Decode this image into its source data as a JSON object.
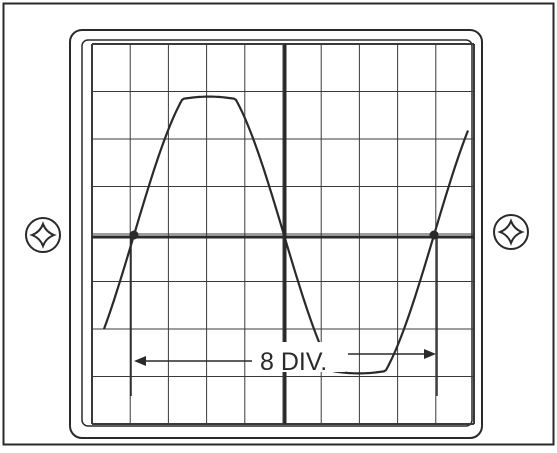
{
  "figure": {
    "measurement_label": "8 DIV."
  },
  "screws": [
    {
      "name": "left-mounting-screw-icon",
      "icon": "cross-screw"
    },
    {
      "name": "right-mounting-screw-icon",
      "icon": "cross-screw"
    }
  ],
  "graticule": {
    "horizontal_divisions": 10,
    "vertical_divisions": 8
  },
  "waveform": {
    "shape": "sine",
    "measured_period_divisions": 8
  },
  "colors": {
    "ink": "#2a2a2a",
    "background": "#ffffff"
  }
}
